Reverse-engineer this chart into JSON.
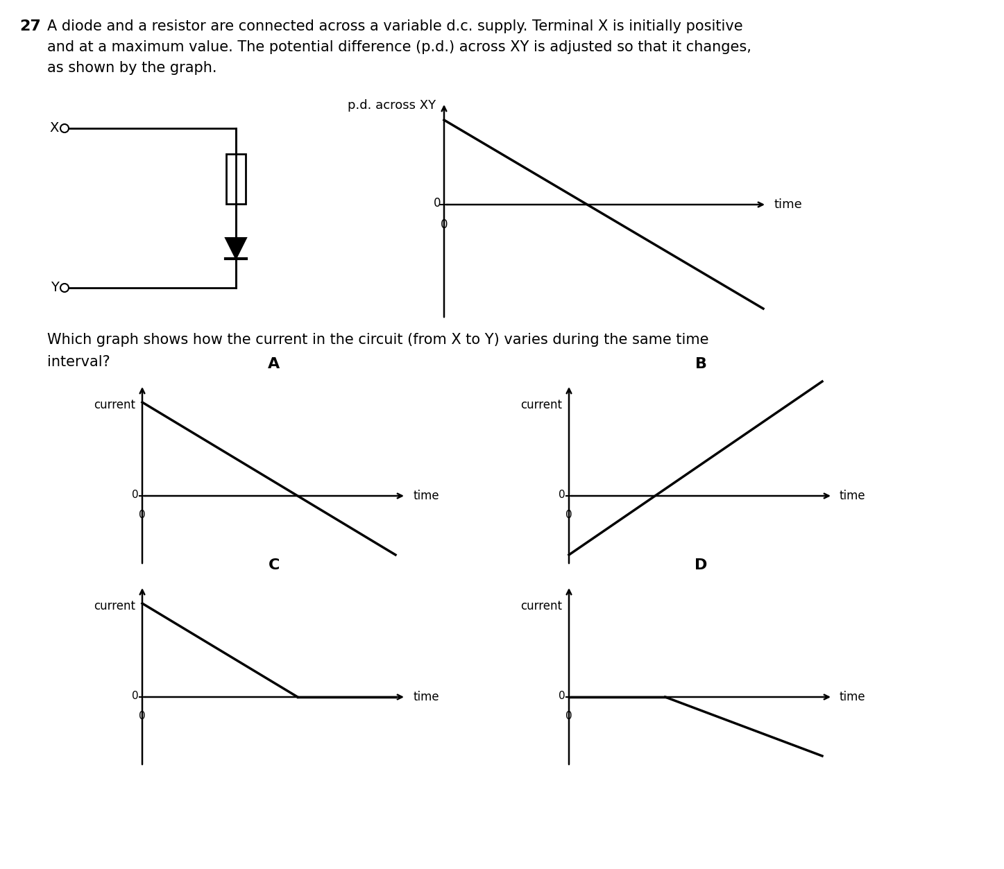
{
  "bg_color": "#ffffff",
  "q_num": "27",
  "q_line1": "A diode and a resistor are connected across a variable d.c. supply. Terminal X is initially positive",
  "q_line2": "and at a maximum value. The potential difference (p.d.) across XY is adjusted so that it changes,",
  "q_line3": "as shown by the graph.",
  "sub_q_line1": "Which graph shows how the current in the circuit (from X to Y) varies during the same time",
  "sub_q_line2": "interval?",
  "pd_ylabel": "p.d. across XY",
  "pd_xlabel": "time",
  "opt_ylabel": "current",
  "opt_xlabel": "time",
  "option_labels": [
    "A",
    "B",
    "C",
    "D"
  ],
  "circuit_X_label": "X",
  "circuit_Y_label": "Y",
  "graph_A_type": "decreasing_full",
  "graph_B_type": "increasing_from_neg",
  "graph_C_type": "decreasing_clipped",
  "graph_D_type": "flat_then_decrease",
  "font_size_main": 15,
  "font_size_label": 13,
  "font_size_axis": 12,
  "font_size_option": 16
}
